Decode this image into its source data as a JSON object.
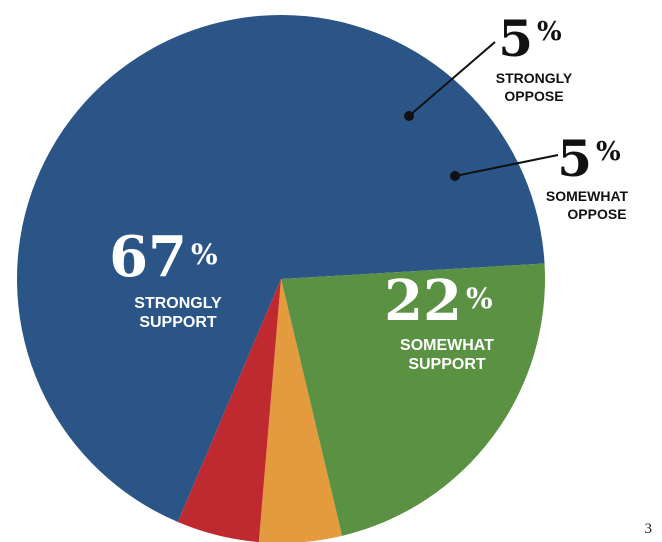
{
  "chart_data": {
    "type": "pie",
    "slices": [
      {
        "label": "STRONGLY SUPPORT",
        "value": 67,
        "color": "#2c5587"
      },
      {
        "label": "SOMEWHAT SUPPORT",
        "value": 22,
        "color": "#5a9143"
      },
      {
        "label": "SOMEWHAT OPPOSE",
        "value": 5,
        "color": "#e49b3e"
      },
      {
        "label": "STRONGLY OPPOSE",
        "value": 5,
        "color": "#bf2a30"
      }
    ],
    "labels": [
      {
        "number": "67",
        "line1": "STRONGLY",
        "line2": "SUPPORT"
      },
      {
        "number": "22",
        "line1": "SOMEWHAT",
        "line2": "SUPPORT"
      },
      {
        "number": "5",
        "line1": "SOMEWHAT",
        "line2": "OPPOSE"
      },
      {
        "number": "5",
        "line1": "STRONGLY",
        "line2": "OPPOSE"
      }
    ],
    "percent_sign": "%",
    "title": "",
    "legend": "none"
  },
  "page_number": "3"
}
